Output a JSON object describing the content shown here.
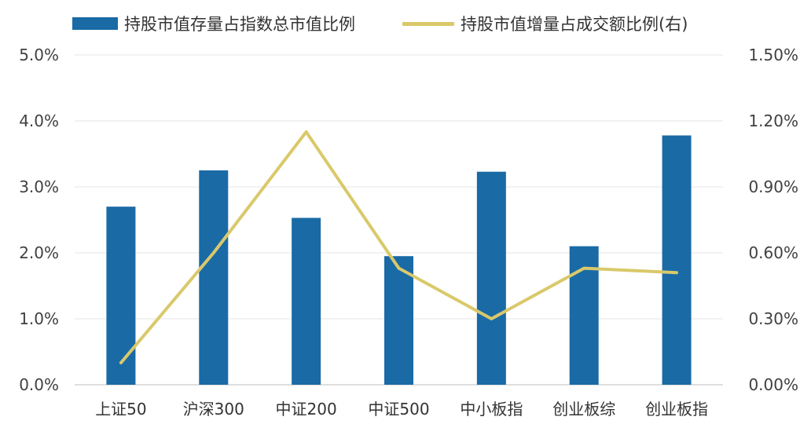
{
  "chart_data": {
    "type": "bar",
    "categories": [
      "上证50",
      "沪深300",
      "中证200",
      "中证500",
      "中小板指",
      "创业板综",
      "创业板指"
    ],
    "series": [
      {
        "name": "持股市值存量占指数总市值比例",
        "type": "bar",
        "axis": "left",
        "color": "#1a6aa6",
        "values": [
          2.7,
          3.25,
          2.53,
          1.95,
          3.23,
          2.1,
          3.78
        ]
      },
      {
        "name": "持股市值增量占成交额比例(右)",
        "type": "line",
        "axis": "right",
        "color": "#d9c96a",
        "values": [
          0.1,
          0.6,
          1.15,
          0.53,
          0.3,
          0.53,
          0.51
        ]
      }
    ],
    "left_axis": {
      "min": 0,
      "max": 5,
      "ticks": [
        "0.0%",
        "1.0%",
        "2.0%",
        "3.0%",
        "4.0%",
        "5.0%"
      ]
    },
    "right_axis": {
      "min": 0,
      "max": 1.5,
      "ticks": [
        "0.00%",
        "0.30%",
        "0.60%",
        "0.90%",
        "1.20%",
        "1.50%"
      ]
    },
    "grid": true,
    "legend_position": "top-left",
    "xlabel": "",
    "ylabel": ""
  }
}
